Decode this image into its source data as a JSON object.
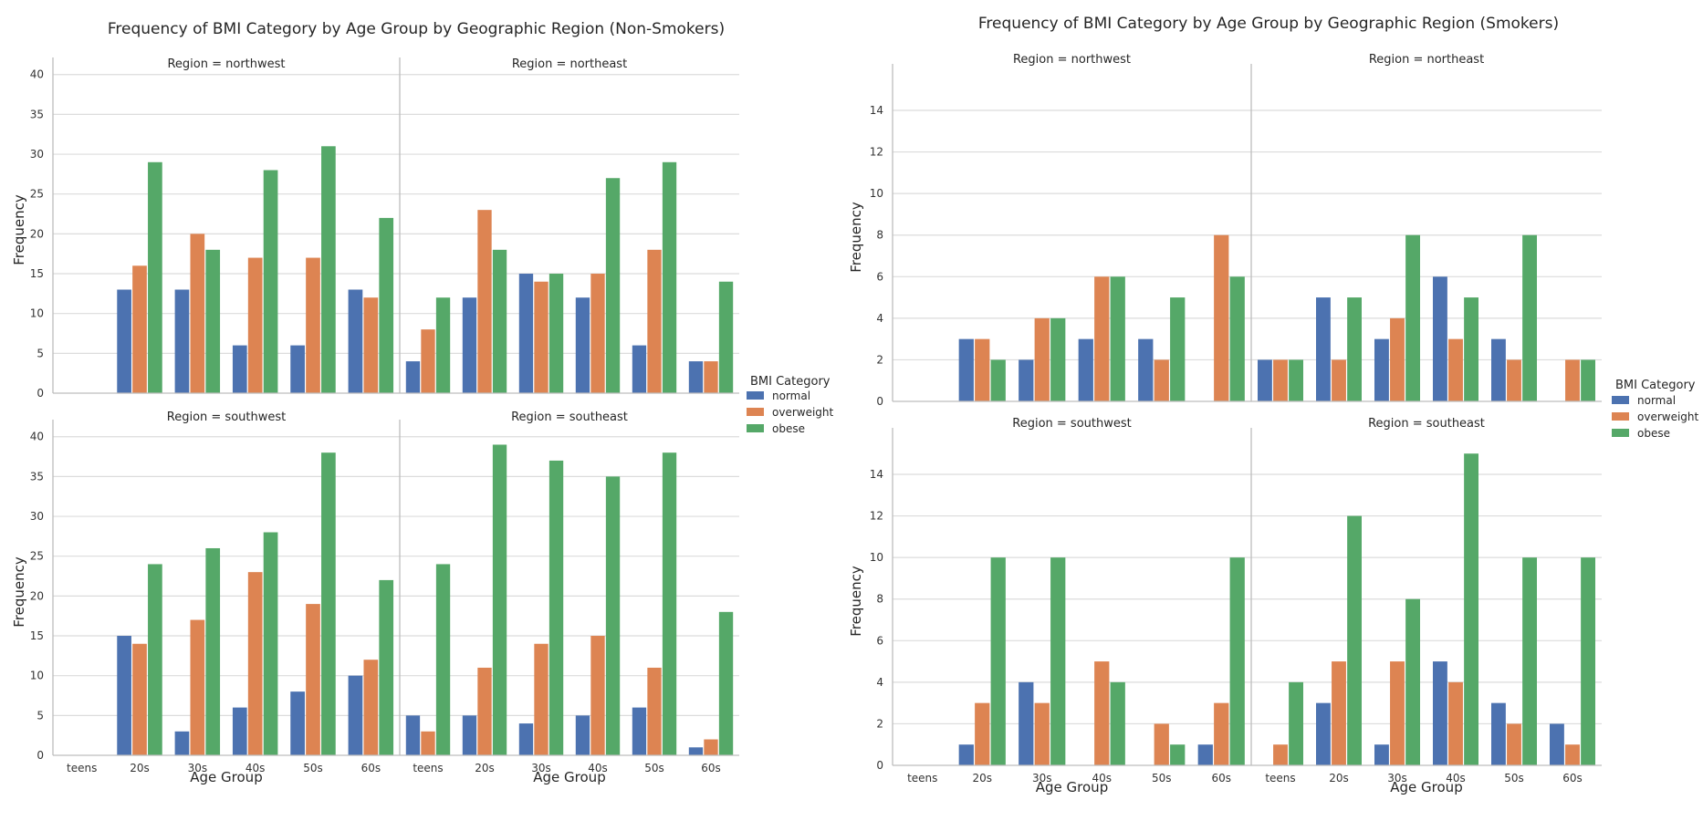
{
  "chart_data": [
    {
      "type": "bar",
      "title": "Frequency of BMI Category by Age Group by Geographic Region (Non-Smokers)",
      "xlabel": "Age Group",
      "ylabel": "Frequency",
      "categories": [
        "teens",
        "20s",
        "30s",
        "40s",
        "50s",
        "60s"
      ],
      "ylim": [
        0,
        41
      ],
      "yticks": [
        0,
        5,
        10,
        15,
        20,
        25,
        30,
        35,
        40
      ],
      "grid": true,
      "legend": {
        "title": "BMI Category",
        "placement": "right"
      },
      "series_names": [
        "normal",
        "overweight",
        "obese"
      ],
      "series_colors": [
        "#4c72b0",
        "#dd8452",
        "#55a868"
      ],
      "facets": [
        {
          "title": "Region = northwest",
          "series": [
            {
              "name": "normal",
              "values": [
                0,
                13,
                13,
                6,
                6,
                13
              ]
            },
            {
              "name": "overweight",
              "values": [
                0,
                16,
                20,
                17,
                17,
                12
              ]
            },
            {
              "name": "obese",
              "values": [
                0,
                29,
                18,
                28,
                31,
                22
              ]
            }
          ]
        },
        {
          "title": "Region = northeast",
          "series": [
            {
              "name": "normal",
              "values": [
                4,
                12,
                15,
                12,
                6,
                4
              ]
            },
            {
              "name": "overweight",
              "values": [
                8,
                23,
                14,
                15,
                18,
                4
              ]
            },
            {
              "name": "obese",
              "values": [
                12,
                18,
                15,
                27,
                29,
                14
              ]
            }
          ]
        },
        {
          "title": "Region = southwest",
          "series": [
            {
              "name": "normal",
              "values": [
                0,
                15,
                3,
                6,
                8,
                10
              ]
            },
            {
              "name": "overweight",
              "values": [
                0,
                14,
                17,
                23,
                19,
                12
              ]
            },
            {
              "name": "obese",
              "values": [
                0,
                24,
                26,
                28,
                38,
                22
              ]
            }
          ]
        },
        {
          "title": "Region = southeast",
          "series": [
            {
              "name": "normal",
              "values": [
                5,
                5,
                4,
                5,
                6,
                1
              ]
            },
            {
              "name": "overweight",
              "values": [
                3,
                11,
                14,
                15,
                11,
                2
              ]
            },
            {
              "name": "obese",
              "values": [
                24,
                39,
                37,
                35,
                38,
                18
              ]
            }
          ]
        }
      ]
    },
    {
      "type": "bar",
      "title": "Frequency of BMI Category by Age Group by Geographic Region (Smokers)",
      "xlabel": "Age Group",
      "ylabel": "Frequency",
      "categories": [
        "teens",
        "20s",
        "30s",
        "40s",
        "50s",
        "60s"
      ],
      "ylim": [
        0,
        15.8
      ],
      "yticks": [
        0,
        2,
        4,
        6,
        8,
        10,
        12,
        14
      ],
      "grid": true,
      "legend": {
        "title": "BMI Category",
        "placement": "right"
      },
      "series_names": [
        "normal",
        "overweight",
        "obese"
      ],
      "series_colors": [
        "#4c72b0",
        "#dd8452",
        "#55a868"
      ],
      "facets": [
        {
          "title": "Region = northwest",
          "series": [
            {
              "name": "normal",
              "values": [
                0,
                3,
                2,
                3,
                3,
                0
              ]
            },
            {
              "name": "overweight",
              "values": [
                0,
                3,
                4,
                6,
                2,
                8
              ]
            },
            {
              "name": "obese",
              "values": [
                0,
                2,
                4,
                6,
                5,
                6
              ]
            }
          ]
        },
        {
          "title": "Region = northeast",
          "series": [
            {
              "name": "normal",
              "values": [
                2,
                5,
                3,
                6,
                3,
                0
              ]
            },
            {
              "name": "overweight",
              "values": [
                2,
                2,
                4,
                3,
                2,
                2
              ]
            },
            {
              "name": "obese",
              "values": [
                2,
                5,
                8,
                5,
                8,
                2
              ]
            }
          ]
        },
        {
          "title": "Region = southwest",
          "series": [
            {
              "name": "normal",
              "values": [
                0,
                1,
                4,
                0,
                0,
                1
              ]
            },
            {
              "name": "overweight",
              "values": [
                0,
                3,
                3,
                5,
                2,
                3
              ]
            },
            {
              "name": "obese",
              "values": [
                0,
                10,
                10,
                4,
                1,
                10
              ]
            }
          ]
        },
        {
          "title": "Region = southeast",
          "series": [
            {
              "name": "normal",
              "values": [
                0,
                3,
                1,
                5,
                3,
                2
              ]
            },
            {
              "name": "overweight",
              "values": [
                1,
                5,
                5,
                4,
                2,
                1
              ]
            },
            {
              "name": "obese",
              "values": [
                4,
                12,
                8,
                15,
                10,
                10
              ]
            }
          ]
        }
      ]
    }
  ]
}
